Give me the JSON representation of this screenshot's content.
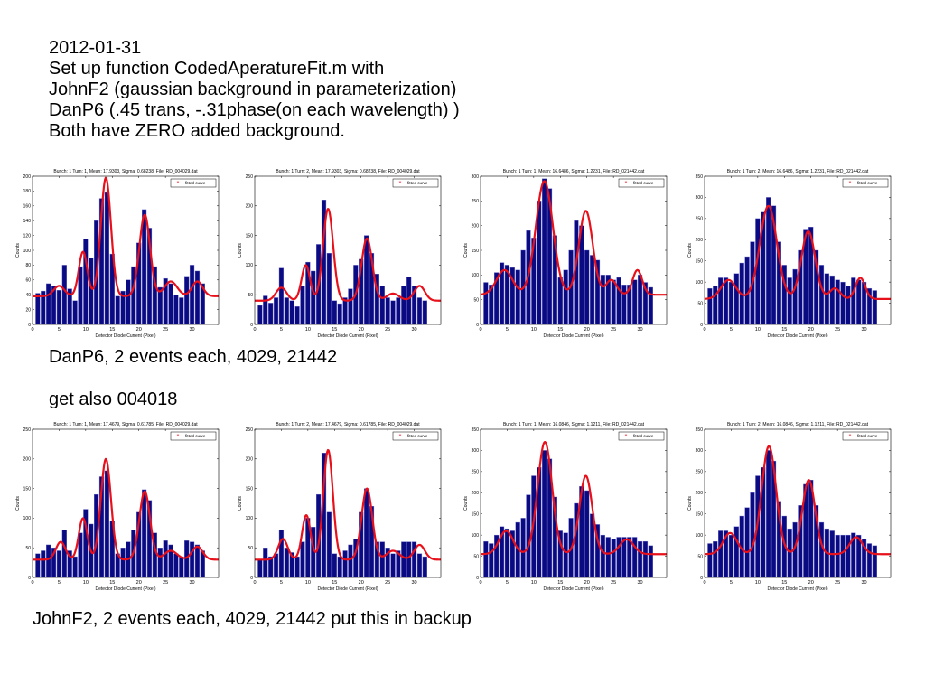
{
  "notes": {
    "intro": [
      "2012-01-31",
      "Set up function CodedAperatureFit.m with",
      "JohnF2 (gaussian background in parameterization)",
      "DanP6 (.45 trans, -.31phase(on each wavelength) )",
      "Both have ZERO added background."
    ],
    "caption_danp6": "DanP6, 2 events each, 4029, 21442",
    "caption_get_also": "get also 004018",
    "caption_johnf2": "JohnF2, 2 events each, 4029, 21442  put this in backup"
  },
  "colors": {
    "bar": "#0a0a82",
    "fit": "#e8101a",
    "axis": "#000000"
  },
  "chart_data": [
    {
      "type": "bar",
      "title": "Bunch: 1 Turn: 1,   Mean: 17.9303,  Sigma: 0.68238, File: RD_004029.dat",
      "xlabel": "Detector Diode Current (Pixel)",
      "ylabel": "Counts",
      "xlim": [
        0,
        35
      ],
      "ylim": [
        0,
        200
      ],
      "xticks": [
        0,
        5,
        10,
        15,
        20,
        25,
        30
      ],
      "yticks": [
        0,
        20,
        40,
        60,
        80,
        100,
        120,
        140,
        160,
        180,
        200
      ],
      "legend": "fitted curve",
      "legend_position": "top-right",
      "x": [
        1,
        2,
        3,
        4,
        5,
        6,
        7,
        8,
        9,
        10,
        11,
        12,
        13,
        14,
        15,
        16,
        17,
        18,
        19,
        20,
        21,
        22,
        23,
        24,
        25,
        26,
        27,
        28,
        29,
        30,
        31,
        32
      ],
      "values": [
        42,
        45,
        55,
        52,
        46,
        80,
        48,
        32,
        78,
        115,
        90,
        140,
        170,
        178,
        95,
        38,
        45,
        60,
        78,
        110,
        155,
        130,
        78,
        50,
        62,
        55,
        40,
        36,
        65,
        80,
        72,
        55
      ],
      "fit": {
        "base": 38,
        "peaks": [
          [
            5,
            14,
            1
          ],
          [
            9.5,
            60,
            0.8
          ],
          [
            13.8,
            160,
            0.95
          ],
          [
            21.1,
            110,
            1.0
          ],
          [
            26,
            20,
            1.2
          ],
          [
            31,
            20,
            1.0
          ]
        ]
      }
    },
    {
      "type": "bar",
      "title": "Bunch: 1 Turn: 2,   Mean: 17.9303,  Sigma: 0.68238, File: RD_004029.dat",
      "xlabel": "Detector Diode Current (Pixel)",
      "ylabel": "Counts",
      "xlim": [
        0,
        35
      ],
      "ylim": [
        0,
        250
      ],
      "xticks": [
        0,
        5,
        10,
        15,
        20,
        25,
        30
      ],
      "yticks": [
        0,
        50,
        100,
        150,
        200,
        250
      ],
      "legend": "fitted curve",
      "legend_position": "top-right",
      "x": [
        1,
        2,
        3,
        4,
        5,
        6,
        7,
        8,
        9,
        10,
        11,
        12,
        13,
        14,
        15,
        16,
        17,
        18,
        19,
        20,
        21,
        22,
        23,
        24,
        25,
        26,
        27,
        28,
        29,
        30,
        31,
        32
      ],
      "values": [
        32,
        48,
        36,
        45,
        95,
        45,
        40,
        30,
        65,
        105,
        90,
        135,
        210,
        120,
        40,
        35,
        45,
        60,
        100,
        110,
        150,
        120,
        85,
        65,
        45,
        40,
        45,
        65,
        80,
        65,
        45,
        40
      ],
      "fit": {
        "base": 40,
        "peaks": [
          [
            5,
            22,
            1
          ],
          [
            9.6,
            60,
            0.8
          ],
          [
            13.8,
            155,
            0.95
          ],
          [
            21.1,
            105,
            1.0
          ],
          [
            26,
            12,
            1.2
          ],
          [
            31,
            25,
            1.0
          ]
        ]
      }
    },
    {
      "type": "bar",
      "title": "Bunch: 1 Turn: 1,   Mean: 16.6486,  Sigma: 1.2231, File: RD_021442.dat",
      "xlabel": "Detector Diode Current (Pixel)",
      "ylabel": "Counts",
      "xlim": [
        0,
        35
      ],
      "ylim": [
        0,
        300
      ],
      "xticks": [
        0,
        5,
        10,
        15,
        20,
        25,
        30
      ],
      "yticks": [
        0,
        50,
        100,
        150,
        200,
        250,
        300
      ],
      "legend": "fitted curve",
      "legend_position": "top-right",
      "x": [
        1,
        2,
        3,
        4,
        5,
        6,
        7,
        8,
        9,
        10,
        11,
        12,
        13,
        14,
        15,
        16,
        17,
        18,
        19,
        20,
        21,
        22,
        23,
        24,
        25,
        26,
        27,
        28,
        29,
        30,
        31,
        32
      ],
      "values": [
        85,
        80,
        105,
        125,
        120,
        115,
        110,
        150,
        190,
        175,
        250,
        295,
        275,
        180,
        95,
        110,
        150,
        210,
        200,
        150,
        140,
        130,
        100,
        100,
        90,
        95,
        80,
        80,
        90,
        100,
        85,
        75
      ],
      "fit": {
        "base": 60,
        "peaks": [
          [
            4.5,
            50,
            1.5
          ],
          [
            12,
            230,
            1.6
          ],
          [
            19.8,
            170,
            1.3
          ],
          [
            24.6,
            30,
            1.0
          ],
          [
            29.5,
            50,
            0.9
          ]
        ]
      }
    },
    {
      "type": "bar",
      "title": "Bunch: 1 Turn: 2,   Mean: 16.6486,  Sigma: 1.2231, File: RD_021442.dat",
      "xlabel": "Detector Diode Current (Pixel)",
      "ylabel": "Counts",
      "xlim": [
        0,
        35
      ],
      "ylim": [
        0,
        350
      ],
      "xticks": [
        0,
        5,
        10,
        15,
        20,
        25,
        30
      ],
      "yticks": [
        0,
        50,
        100,
        150,
        200,
        250,
        300,
        350
      ],
      "legend": "fitted curve",
      "legend_position": "top-right",
      "x": [
        1,
        2,
        3,
        4,
        5,
        6,
        7,
        8,
        9,
        10,
        11,
        12,
        13,
        14,
        15,
        16,
        17,
        18,
        19,
        20,
        21,
        22,
        23,
        24,
        25,
        26,
        27,
        28,
        29,
        30,
        31,
        32
      ],
      "values": [
        85,
        90,
        110,
        110,
        100,
        120,
        145,
        160,
        195,
        250,
        265,
        300,
        280,
        195,
        140,
        110,
        130,
        175,
        225,
        230,
        175,
        140,
        120,
        115,
        105,
        100,
        90,
        110,
        105,
        100,
        85,
        80
      ],
      "fit": {
        "base": 60,
        "peaks": [
          [
            4.5,
            45,
            1.4
          ],
          [
            12,
            220,
            1.6
          ],
          [
            19.5,
            160,
            1.3
          ],
          [
            24.5,
            25,
            1.0
          ],
          [
            29.3,
            50,
            0.9
          ]
        ]
      }
    },
    {
      "type": "bar",
      "title": "Bunch: 1 Turn: 1,   Mean: 17.4679,  Sigma: 0.61785, File: RD_004029.dat",
      "xlabel": "Detector Diode Current (Pixel)",
      "ylabel": "Counts",
      "xlim": [
        0,
        35
      ],
      "ylim": [
        0,
        250
      ],
      "xticks": [
        0,
        5,
        10,
        15,
        20,
        25,
        30
      ],
      "yticks": [
        0,
        50,
        100,
        150,
        200,
        250
      ],
      "legend": "fitted curve",
      "legend_position": "top-right",
      "x": [
        1,
        2,
        3,
        4,
        5,
        6,
        7,
        8,
        9,
        10,
        11,
        12,
        13,
        14,
        15,
        16,
        17,
        18,
        19,
        20,
        21,
        22,
        23,
        24,
        25,
        26,
        27,
        28,
        29,
        30,
        31,
        32
      ],
      "values": [
        40,
        45,
        55,
        50,
        45,
        80,
        45,
        35,
        75,
        115,
        90,
        140,
        170,
        180,
        95,
        40,
        50,
        60,
        80,
        110,
        148,
        130,
        75,
        50,
        62,
        55,
        40,
        35,
        62,
        60,
        55,
        45
      ],
      "fit": {
        "base": 30,
        "peaks": [
          [
            5.3,
            30,
            0.9
          ],
          [
            9.5,
            70,
            0.8
          ],
          [
            13.8,
            170,
            0.95
          ],
          [
            21.1,
            115,
            1.0
          ],
          [
            26,
            15,
            1.2
          ],
          [
            31,
            22,
            1.0
          ]
        ]
      }
    },
    {
      "type": "bar",
      "title": "Bunch: 1 Turn: 2,   Mean: 17.4679,  Sigma: 0.61785, File: RD_004029.dat",
      "xlabel": "Detector Diode Current (Pixel)",
      "ylabel": "Counts",
      "xlim": [
        0,
        35
      ],
      "ylim": [
        0,
        250
      ],
      "xticks": [
        0,
        5,
        10,
        15,
        20,
        25,
        30
      ],
      "yticks": [
        0,
        50,
        100,
        150,
        200,
        250
      ],
      "legend": "fitted curve",
      "legend_position": "top-right",
      "x": [
        1,
        2,
        3,
        4,
        5,
        6,
        7,
        8,
        9,
        10,
        11,
        12,
        13,
        14,
        15,
        16,
        17,
        18,
        19,
        20,
        21,
        22,
        23,
        24,
        25,
        26,
        27,
        28,
        29,
        30,
        31,
        32
      ],
      "values": [
        30,
        50,
        35,
        40,
        80,
        50,
        42,
        35,
        60,
        100,
        85,
        140,
        210,
        110,
        40,
        35,
        45,
        55,
        65,
        110,
        150,
        120,
        60,
        60,
        50,
        40,
        45,
        60,
        60,
        60,
        40,
        35
      ],
      "fit": {
        "base": 30,
        "peaks": [
          [
            5.3,
            35,
            0.9
          ],
          [
            9.7,
            75,
            0.8
          ],
          [
            13.8,
            185,
            0.9
          ],
          [
            21.1,
            120,
            1.0
          ],
          [
            26,
            15,
            1.2
          ],
          [
            31,
            25,
            1.0
          ]
        ]
      }
    },
    {
      "type": "bar",
      "title": "Bunch: 1 Turn: 1,   Mean: 16.0846,  Sigma: 1.1211, File: RD_021442.dat",
      "xlabel": "Detector Diode Current (Pixel)",
      "ylabel": "Counts",
      "xlim": [
        0,
        35
      ],
      "ylim": [
        0,
        350
      ],
      "xticks": [
        0,
        5,
        10,
        15,
        20,
        25,
        30
      ],
      "yticks": [
        0,
        50,
        100,
        150,
        200,
        250,
        300,
        350
      ],
      "legend": "fitted curve",
      "legend_position": "top-right",
      "x": [
        1,
        2,
        3,
        4,
        5,
        6,
        7,
        8,
        9,
        10,
        11,
        12,
        13,
        14,
        15,
        16,
        17,
        18,
        19,
        20,
        21,
        22,
        23,
        24,
        25,
        26,
        27,
        28,
        29,
        30,
        31,
        32
      ],
      "values": [
        85,
        80,
        100,
        120,
        115,
        110,
        130,
        140,
        195,
        240,
        260,
        300,
        280,
        190,
        110,
        105,
        140,
        175,
        215,
        205,
        150,
        125,
        100,
        95,
        90,
        95,
        95,
        95,
        95,
        85,
        85,
        75
      ],
      "fit": {
        "base": 55,
        "peaks": [
          [
            4.8,
            55,
            1.3
          ],
          [
            12.1,
            265,
            1.35
          ],
          [
            19.8,
            185,
            1.2
          ],
          [
            27.5,
            35,
            1.3
          ]
        ]
      }
    },
    {
      "type": "bar",
      "title": "Bunch: 1 Turn: 2,   Mean: 16.0846,  Sigma: 1.1211, File: RD_021442.dat",
      "xlabel": "Detector Diode Current (Pixel)",
      "ylabel": "Counts",
      "xlim": [
        0,
        35
      ],
      "ylim": [
        0,
        350
      ],
      "xticks": [
        0,
        5,
        10,
        15,
        20,
        25,
        30
      ],
      "yticks": [
        0,
        50,
        100,
        150,
        200,
        250,
        300,
        350
      ],
      "legend": "fitted curve",
      "legend_position": "top-right",
      "x": [
        1,
        2,
        3,
        4,
        5,
        6,
        7,
        8,
        9,
        10,
        11,
        12,
        13,
        14,
        15,
        16,
        17,
        18,
        19,
        20,
        21,
        22,
        23,
        24,
        25,
        26,
        27,
        28,
        29,
        30,
        31,
        32
      ],
      "values": [
        80,
        85,
        110,
        110,
        100,
        120,
        145,
        165,
        200,
        240,
        260,
        300,
        275,
        180,
        145,
        115,
        130,
        170,
        220,
        230,
        170,
        130,
        115,
        110,
        100,
        100,
        100,
        105,
        100,
        90,
        80,
        75
      ],
      "fit": {
        "base": 55,
        "peaks": [
          [
            4.8,
            50,
            1.3
          ],
          [
            12.1,
            255,
            1.35
          ],
          [
            19.6,
            175,
            1.2
          ],
          [
            28.5,
            40,
            1.2
          ]
        ]
      }
    }
  ]
}
